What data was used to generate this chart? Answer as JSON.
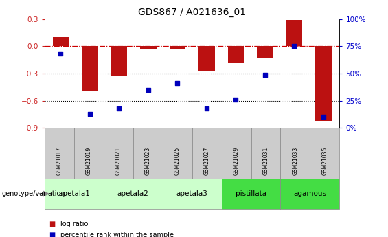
{
  "title": "GDS867 / A021636_01",
  "samples": [
    "GSM21017",
    "GSM21019",
    "GSM21021",
    "GSM21023",
    "GSM21025",
    "GSM21027",
    "GSM21029",
    "GSM21031",
    "GSM21033",
    "GSM21035"
  ],
  "log_ratio": [
    0.1,
    -0.5,
    -0.32,
    -0.025,
    -0.025,
    -0.28,
    -0.185,
    -0.135,
    0.29,
    -0.82
  ],
  "percentile_rank": [
    68,
    13,
    18,
    35,
    41,
    18,
    26,
    49,
    75,
    10
  ],
  "ylim_left": [
    -0.9,
    0.3
  ],
  "ylim_right": [
    0,
    100
  ],
  "yticks_left": [
    -0.9,
    -0.6,
    -0.3,
    0.0,
    0.3
  ],
  "yticks_right": [
    0,
    25,
    50,
    75,
    100
  ],
  "bar_color": "#bb1111",
  "dot_color": "#0000bb",
  "zero_line_color": "#cc0000",
  "dotted_line_color": "#000000",
  "groups": [
    {
      "name": "apetala1",
      "indices": [
        0,
        1
      ],
      "color": "#ccffcc"
    },
    {
      "name": "apetala2",
      "indices": [
        2,
        3
      ],
      "color": "#ccffcc"
    },
    {
      "name": "apetala3",
      "indices": [
        4,
        5
      ],
      "color": "#ccffcc"
    },
    {
      "name": "pistillata",
      "indices": [
        6,
        7
      ],
      "color": "#44dd44"
    },
    {
      "name": "agamous",
      "indices": [
        8,
        9
      ],
      "color": "#44dd44"
    }
  ],
  "legend_red": "log ratio",
  "legend_blue": "percentile rank within the sample",
  "genotype_label": "genotype/variation"
}
